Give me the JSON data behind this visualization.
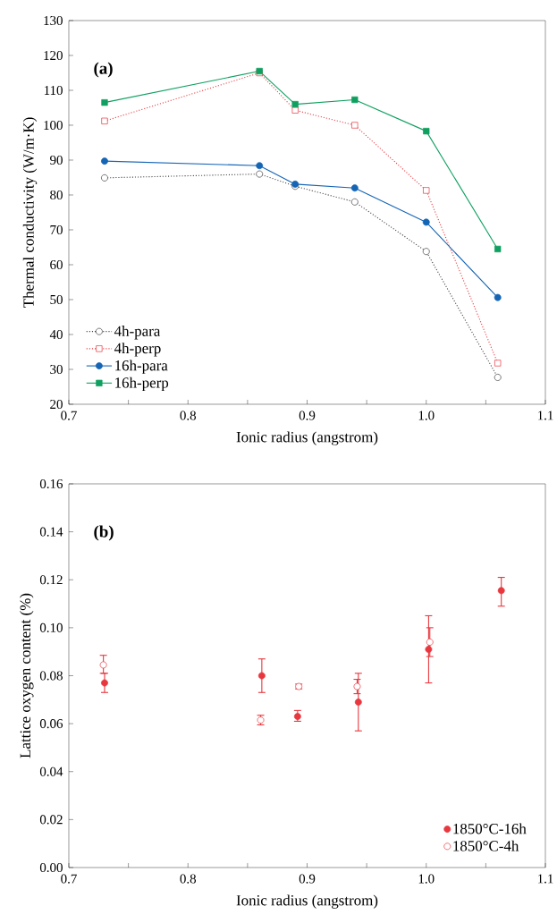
{
  "chart_data": [
    {
      "type": "line",
      "xlabel": "Ionic radius (angstrom)",
      "ylabel": "Thermal conductivity (W/m·K)",
      "annotations": [
        "(a)"
      ],
      "xlim": [
        0.7,
        1.1
      ],
      "ylim": [
        20,
        130
      ],
      "xticks": [
        0.7,
        {
          "value": 0.75,
          "label": null
        },
        0.8,
        {
          "value": 0.85,
          "label": null
        },
        0.9,
        {
          "value": 0.95,
          "label": null
        },
        {
          "value": 1,
          "label": "1.0"
        },
        {
          "value": 1.05,
          "label": null
        },
        1.1
      ],
      "yticks": [
        20,
        30,
        40,
        50,
        60,
        70,
        80,
        90,
        100,
        110,
        120,
        130
      ],
      "legend": "bottom left",
      "x": [
        0.73,
        0.86,
        0.89,
        0.94,
        1.0,
        1.06
      ],
      "series": [
        {
          "name": "4h-para",
          "color": "#404040",
          "marker": "circle-open",
          "line_style": "dotted",
          "values": [
            84.9,
            86,
            82.5,
            78,
            63.8,
            27.7
          ]
        },
        {
          "name": "4h-perp",
          "color": "#e8373e",
          "marker": "square-open",
          "line_style": "dotted",
          "values": [
            101.2,
            115,
            104.3,
            100,
            81.3,
            31.8
          ]
        },
        {
          "name": "16h-para",
          "color": "#1565b5",
          "marker": "circle",
          "line_style": "solid",
          "values": [
            89.7,
            88.4,
            83.1,
            82,
            72.2,
            50.6
          ]
        },
        {
          "name": "16h-perp",
          "color": "#0fa060",
          "marker": "square",
          "line_style": "solid",
          "values": [
            106.5,
            115.5,
            106,
            107.3,
            98.3,
            64.5
          ]
        }
      ]
    },
    {
      "type": "scatter",
      "xlabel": "Ionic radius (angstrom)",
      "ylabel": "Lattice oxygen content (%)",
      "annotations": [
        "(b)"
      ],
      "xlim": [
        0.7,
        1.1
      ],
      "ylim": [
        0,
        0.16
      ],
      "xticks": [
        0.7,
        {
          "value": 0.75,
          "label": null
        },
        0.8,
        {
          "value": 0.85,
          "label": null
        },
        0.9,
        {
          "value": 0.95,
          "label": null
        },
        {
          "value": 1,
          "label": "1.0"
        },
        {
          "value": 1.05,
          "label": null
        },
        1.1
      ],
      "yticks": [
        {
          "value": 0,
          "label": "0.00"
        },
        0.02,
        0.04,
        0.06,
        0.08,
        {
          "value": 0.1,
          "label": "0.10"
        },
        0.12,
        0.14,
        0.16
      ],
      "legend": "bottom right",
      "series": [
        {
          "name": "1850°C-16h",
          "color": "#e8373e",
          "marker": "circle",
          "x": [
            0.73,
            0.862,
            0.892,
            0.943,
            1.002,
            1.063
          ],
          "values": [
            0.077,
            0.08,
            0.063,
            0.069,
            0.091,
            0.1155
          ],
          "errors": [
            [
              0.073,
              0.081
            ],
            [
              0.073,
              0.087
            ],
            [
              0.061,
              0.0655
            ],
            [
              0.057,
              0.081
            ],
            [
              0.077,
              0.105
            ],
            [
              0.109,
              0.121
            ]
          ]
        },
        {
          "name": "1850°C-4h",
          "color": "#e8373e",
          "marker": "circle-open",
          "x": [
            0.729,
            0.861,
            0.893,
            0.942,
            1.003
          ],
          "values": [
            0.0845,
            0.0615,
            0.0755,
            0.0755,
            0.094
          ],
          "errors": [
            [
              0.081,
              0.0885
            ],
            [
              0.0595,
              0.0635
            ],
            [
              0.0745,
              0.0765
            ],
            [
              0.0725,
              0.0785
            ],
            [
              0.088,
              0.1
            ]
          ]
        }
      ]
    }
  ]
}
